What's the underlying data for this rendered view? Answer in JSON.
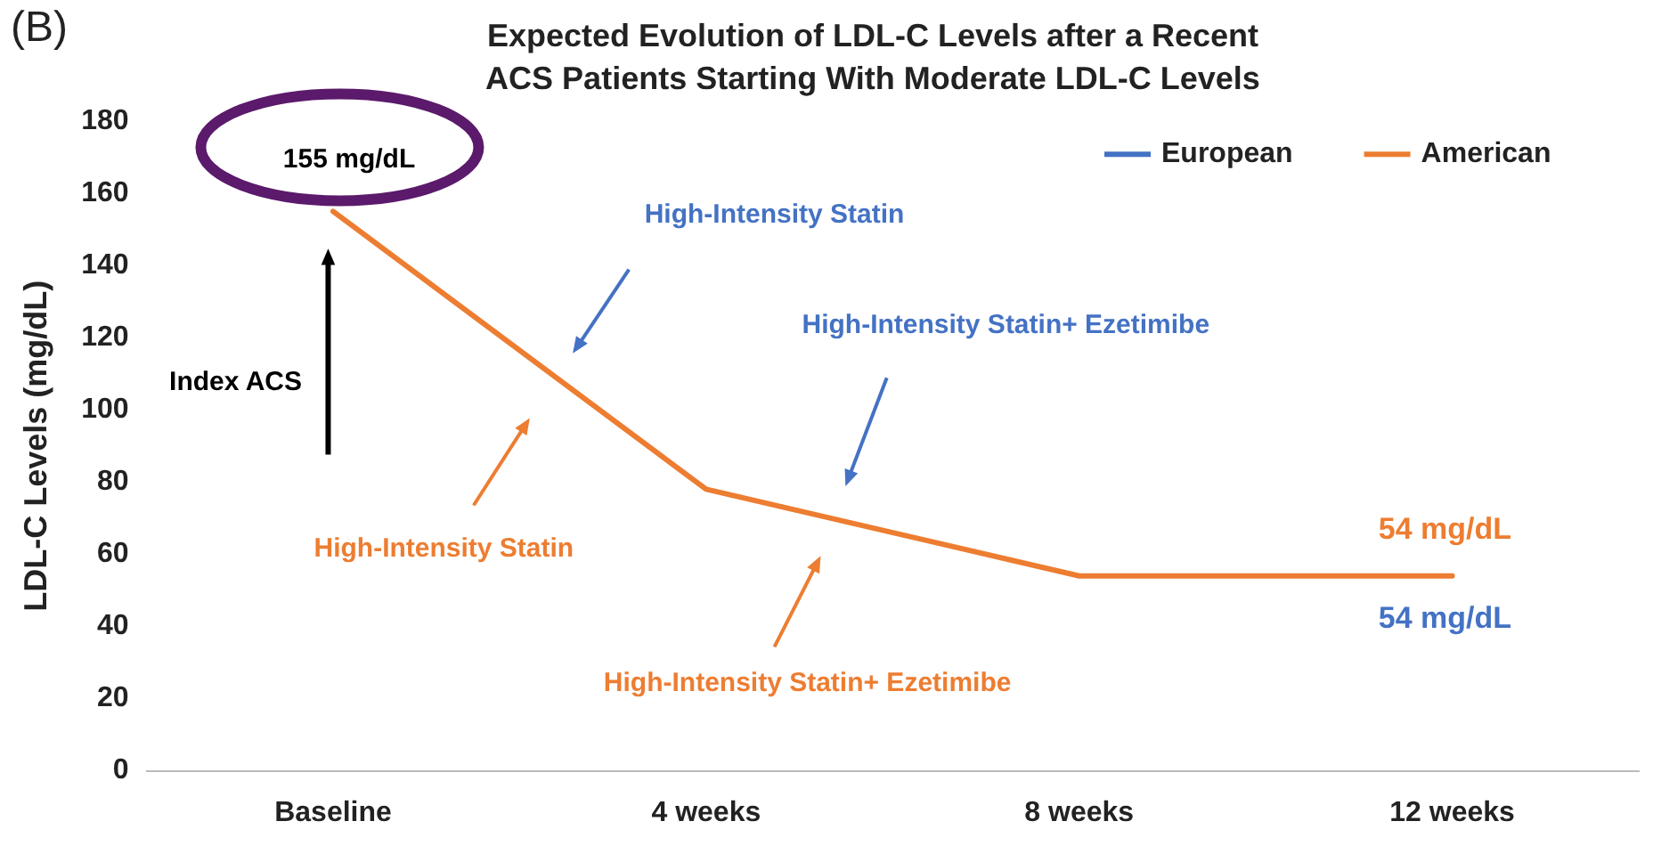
{
  "chart_data": {
    "type": "line",
    "title": "Expected Evolution of LDL-C Levels after a Recent ACS Patients Starting With Moderate LDL-C Levels",
    "ylabel": "LDL-C Levels (mg/dL)",
    "categories": [
      "Baseline",
      "4 weeks",
      "8 weeks",
      "12 weeks"
    ],
    "series": [
      {
        "name": "European",
        "color": "#4472c4",
        "values": [
          null,
          null,
          null,
          null
        ]
      },
      {
        "name": "American",
        "color": "#ed7d31",
        "values": [
          155,
          78,
          54,
          54
        ]
      }
    ],
    "ylim": [
      0,
      180
    ],
    "yticks": [
      0,
      20,
      40,
      60,
      80,
      100,
      120,
      140,
      160,
      180
    ],
    "grid": false,
    "legend": "top right",
    "marker": "none",
    "line_style": "solid",
    "annotations": [
      "(B)",
      {
        "text": "155 mg/dL",
        "x": "Baseline",
        "y": 155
      },
      "High-Intensity Statin",
      "High-Intensity Statin+ Ezetimibe",
      "Index ACS",
      "High-Intensity Statin",
      "High-Intensity Statin+ Ezetimibe",
      {
        "text": "54 mg/dL",
        "x": "12 weeks",
        "y": 54
      },
      {
        "text": "54 mg/dL",
        "x": "12 weeks",
        "y": 54
      }
    ]
  }
}
